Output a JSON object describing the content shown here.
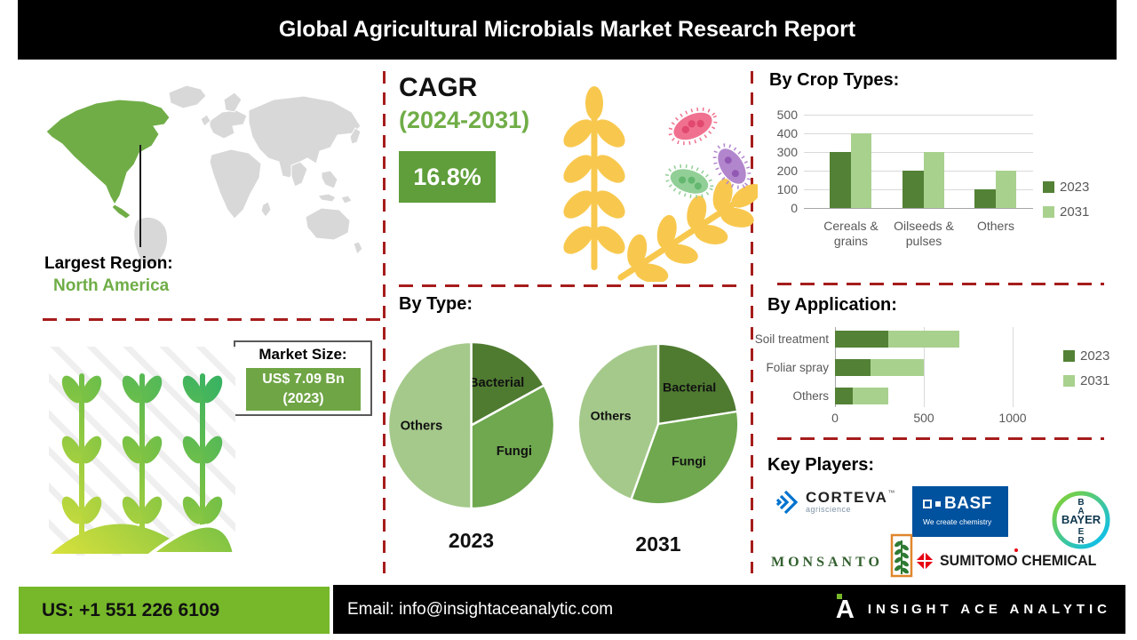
{
  "header": {
    "title": "Global Agricultural Microbials Market Research Report"
  },
  "left": {
    "largest_region_label": "Largest Region:",
    "largest_region_value": "North America",
    "market_size_label": "Market Size:",
    "market_size_value": "US$ 7.09 Bn",
    "market_size_year": "(2023)"
  },
  "center": {
    "cagr_label": "CAGR",
    "cagr_period": "(2024-2031)",
    "cagr_value": "16.8%",
    "by_type_heading": "By Type:"
  },
  "right": {
    "key_players_heading": "Key Players:"
  },
  "key_players": [
    {
      "name": "Corteva Agriscience",
      "wordmark": "CORTEVA",
      "tm": "™",
      "sub": "agriscience"
    },
    {
      "name": "BASF",
      "wordmark": "BASF",
      "tagline": "We create chemistry"
    },
    {
      "name": "Bayer",
      "wordmark": "BAYER",
      "vertical": [
        "B",
        "A",
        "E",
        "R"
      ]
    },
    {
      "name": "Monsanto",
      "wordmark": "MONSANTO"
    },
    {
      "name": "Sumitomo Chemical",
      "wordmark": "SUMITOMO CHEMICAL"
    }
  ],
  "footer": {
    "phone": "US: +1 551 226 6109",
    "email": "Email: info@insightaceanalytic.com",
    "brand": "INSIGHT ACE ANALYTIC"
  },
  "icons": {
    "world_map": "world-map",
    "map_pointer": "pointer-line",
    "crop_field": "crop-field-icon",
    "wheat": "wheat-spikes-icon",
    "microbes": "microbes-cluster-icon",
    "brand_mark": "insight-ace-a-mark"
  },
  "colors": {
    "accent_green": "#70ad47",
    "series_2023_dark_green": "#538135",
    "series_2031_light_green": "#a9d18e",
    "pie_bacterial": "#4f7b31",
    "pie_fungi": "#6fa84f",
    "pie_others": "#a5c98b",
    "cagr_box_green": "#5f9e3a",
    "footer_green": "#76b82a",
    "dashed_divider_red": "#a61c1c",
    "wheat_yellow": "#f8c84e",
    "title_bar_black": "#000000"
  },
  "chart_data": [
    {
      "id": "by_crop_types",
      "type": "bar",
      "title": "By Crop Types:",
      "categories": [
        "Cereals &\ngrains",
        "Oilseeds &\npulses",
        "Others"
      ],
      "series": [
        {
          "name": "2023",
          "color": "#538135",
          "values": [
            300,
            200,
            100
          ]
        },
        {
          "name": "2031",
          "color": "#a9d18e",
          "values": [
            400,
            300,
            200
          ]
        }
      ],
      "ylim": [
        0,
        500
      ],
      "yticks": [
        0,
        100,
        200,
        300,
        400,
        500
      ],
      "grid": true,
      "legend_position": "right"
    },
    {
      "id": "by_type_2023",
      "type": "pie",
      "label": "2023",
      "slices": [
        {
          "name": "Bacterial",
          "pct": 17,
          "color": "#4f7b31"
        },
        {
          "name": "Fungi",
          "pct": 33,
          "color": "#6fa84f"
        },
        {
          "name": "Others",
          "pct": 50,
          "color": "#a5c98b"
        }
      ]
    },
    {
      "id": "by_type_2031",
      "type": "pie",
      "label": "2031",
      "slices": [
        {
          "name": "Bacterial",
          "pct": 22.5,
          "color": "#4f7b31"
        },
        {
          "name": "Fungi",
          "pct": 33,
          "color": "#6fa84f"
        },
        {
          "name": "Others",
          "pct": 44.5,
          "color": "#a5c98b"
        }
      ]
    },
    {
      "id": "by_application",
      "type": "bar-horizontal-stacked",
      "title": "By Application:",
      "categories": [
        "Soil treatment",
        "Foliar spray",
        "Others"
      ],
      "series": [
        {
          "name": "2023",
          "color": "#538135",
          "values": [
            300,
            200,
            100
          ]
        },
        {
          "name": "2031",
          "color": "#a9d18e",
          "values": [
            400,
            300,
            200
          ]
        }
      ],
      "xlim": [
        0,
        1100
      ],
      "xticks": [
        0,
        500,
        1000
      ],
      "grid": true,
      "legend_position": "right"
    }
  ]
}
